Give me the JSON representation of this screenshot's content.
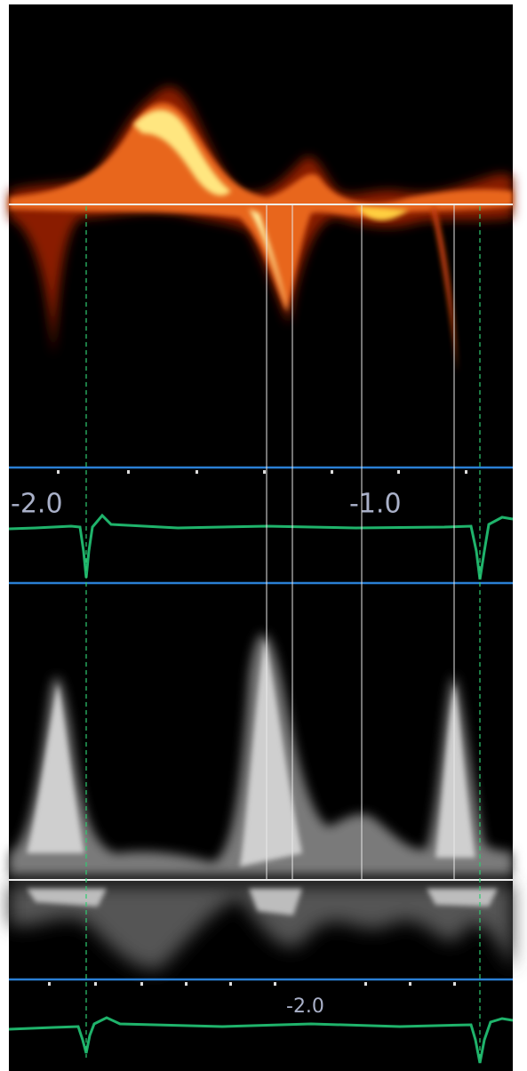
{
  "ecg_strip_top": {
    "labels": [
      "-2.0",
      "-1.0"
    ]
  },
  "ecg_strip_bottom": {
    "labels": [
      "-2.0"
    ]
  }
}
